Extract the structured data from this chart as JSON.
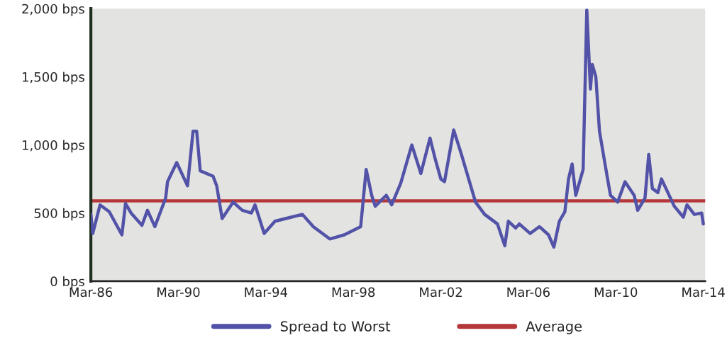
{
  "chart_data": {
    "type": "line",
    "xlim": [
      "1986-03",
      "2014-04"
    ],
    "xticks": [
      {
        "value": "1986-03",
        "label": "Mar-86"
      },
      {
        "value": "1990-03",
        "label": "Mar-90"
      },
      {
        "value": "1994-03",
        "label": "Mar-94"
      },
      {
        "value": "1998-03",
        "label": "Mar-98"
      },
      {
        "value": "2002-03",
        "label": "Mar-02"
      },
      {
        "value": "2006-03",
        "label": "Mar-06"
      },
      {
        "value": "2010-03",
        "label": "Mar-10"
      },
      {
        "value": "2014-03",
        "label": "Mar-14"
      }
    ],
    "ylim": [
      0,
      2000
    ],
    "yticks": [
      {
        "value": 0,
        "label": "0 bps"
      },
      {
        "value": 500,
        "label": "500 bps"
      },
      {
        "value": 1000,
        "label": "1,000 bps"
      },
      {
        "value": 1500,
        "label": "1,500 bps"
      },
      {
        "value": 2000,
        "label": "2,000 bps"
      }
    ],
    "grid": false,
    "legend": "bottom",
    "series": [
      {
        "name": "Spread to Worst",
        "color": "#5252a8",
        "x": [
          "1986-03",
          "1986-04",
          "1986-08",
          "1987-01",
          "1987-08",
          "1987-10",
          "1988-01",
          "1988-07",
          "1988-10",
          "1989-02",
          "1989-08",
          "1989-09",
          "1990-02",
          "1990-08",
          "1990-11",
          "1991-01",
          "1991-03",
          "1991-10",
          "1991-12",
          "1992-03",
          "1992-09",
          "1993-02",
          "1993-07",
          "1993-09",
          "1994-02",
          "1994-08",
          "1995-05",
          "1995-11",
          "1996-05",
          "1997-02",
          "1997-10",
          "1998-07",
          "1998-10",
          "1999-01",
          "1999-03",
          "1999-09",
          "1999-12",
          "2000-05",
          "2000-11",
          "2001-04",
          "2001-09",
          "2001-12",
          "2002-03",
          "2002-05",
          "2002-10",
          "2003-02",
          "2003-10",
          "2004-03",
          "2004-10",
          "2005-02",
          "2005-04",
          "2005-08",
          "2005-10",
          "2006-04",
          "2006-09",
          "2007-02",
          "2007-05",
          "2007-08",
          "2007-11",
          "2008-01",
          "2008-03",
          "2008-05",
          "2008-09",
          "2008-11",
          "2009-01",
          "2009-02",
          "2009-04",
          "2009-06",
          "2009-09",
          "2009-12",
          "2010-04",
          "2010-08",
          "2011-01",
          "2011-03",
          "2011-07",
          "2011-09",
          "2011-11",
          "2012-02",
          "2012-04",
          "2012-11",
          "2013-04",
          "2013-06",
          "2013-10",
          "2014-02",
          "2014-03"
        ],
        "values": [
          490,
          350,
          560,
          510,
          340,
          570,
          500,
          410,
          520,
          400,
          610,
          730,
          870,
          700,
          1100,
          1100,
          810,
          770,
          700,
          460,
          580,
          520,
          500,
          560,
          350,
          440,
          470,
          490,
          400,
          310,
          340,
          400,
          820,
          630,
          550,
          630,
          560,
          720,
          1000,
          790,
          1050,
          890,
          750,
          730,
          1110,
          940,
          580,
          490,
          420,
          260,
          440,
          390,
          420,
          350,
          400,
          340,
          250,
          440,
          510,
          750,
          860,
          630,
          820,
          1990,
          1410,
          1590,
          1500,
          1100,
          860,
          630,
          580,
          730,
          630,
          520,
          610,
          930,
          680,
          650,
          750,
          550,
          470,
          560,
          490,
          500,
          420
        ]
      },
      {
        "name": "Average",
        "color": "#b5373a",
        "x": [
          "1986-03",
          "2014-04"
        ],
        "values": [
          590,
          590
        ]
      }
    ]
  }
}
